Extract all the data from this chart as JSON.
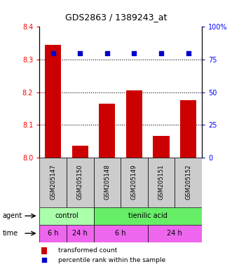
{
  "title": "GDS2863 / 1389243_at",
  "samples": [
    "GSM205147",
    "GSM205150",
    "GSM205148",
    "GSM205149",
    "GSM205151",
    "GSM205152"
  ],
  "bar_values": [
    8.345,
    8.035,
    8.165,
    8.205,
    8.065,
    8.175
  ],
  "percentile_values": [
    80,
    80,
    80,
    80,
    80,
    80
  ],
  "ylim_left": [
    8.0,
    8.4
  ],
  "ylim_right": [
    0,
    100
  ],
  "yticks_left": [
    8.0,
    8.1,
    8.2,
    8.3,
    8.4
  ],
  "yticks_right": [
    0,
    25,
    50,
    75,
    100
  ],
  "ytick_labels_right": [
    "0",
    "25",
    "50",
    "75",
    "100%"
  ],
  "grid_lines": [
    8.1,
    8.2,
    8.3
  ],
  "bar_color": "#cc0000",
  "dot_color": "#0000cc",
  "bar_width": 0.6,
  "agent_color_control": "#aaffaa",
  "agent_color_tienilic": "#66ee66",
  "time_color": "#ee66ee",
  "sample_box_color": "#cccccc",
  "legend_bar_label": "transformed count",
  "legend_dot_label": "percentile rank within the sample",
  "time_data": [
    [
      0,
      1,
      "6 h"
    ],
    [
      1,
      2,
      "24 h"
    ],
    [
      2,
      4,
      "6 h"
    ],
    [
      4,
      6,
      "24 h"
    ]
  ],
  "agent_data": [
    [
      0,
      2,
      "control"
    ],
    [
      2,
      6,
      "tienilic acid"
    ]
  ]
}
